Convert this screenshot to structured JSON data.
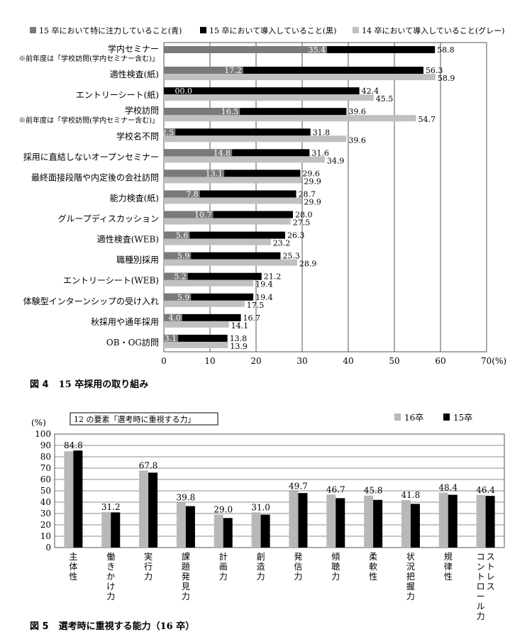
{
  "chart_data": [
    {
      "type": "bar",
      "orientation": "horizontal",
      "title": "",
      "caption_number": "図 4",
      "caption_text": "15 卒採用の取り組み",
      "xlim": [
        0,
        70
      ],
      "xticks": [
        "0",
        "10",
        "20",
        "30",
        "40",
        "50",
        "60",
        "70(%)"
      ],
      "grid": true,
      "legend": [
        "15 卒において特に注力していること(青)",
        "15 卒において導入していること(黒)",
        "14 卒において導入していること(グレー)"
      ],
      "categories": [
        {
          "label": "学内セミナー",
          "note": "※前年度は「学校訪問(学内セミナー含む)」"
        },
        {
          "label": "適性検査(紙)",
          "note": ""
        },
        {
          "label": "エントリーシート(紙)",
          "note": ""
        },
        {
          "label": "学校訪問",
          "note": "※前年度は「学校訪問(学内セミナー含む)」"
        },
        {
          "label": "学校名不問",
          "note": ""
        },
        {
          "label": "採用に直結しないオープンセミナー",
          "note": ""
        },
        {
          "label": "最終面接段階や内定後の会社訪問",
          "note": ""
        },
        {
          "label": "能力検査(紙)",
          "note": ""
        },
        {
          "label": "グループディスカッション",
          "note": ""
        },
        {
          "label": "適性検査(WEB)",
          "note": ""
        },
        {
          "label": "職種別採用",
          "note": ""
        },
        {
          "label": "エントリーシート(WEB)",
          "note": ""
        },
        {
          "label": "体験型インターンシップの受け入れ",
          "note": ""
        },
        {
          "label": "秋採用や通年採用",
          "note": ""
        },
        {
          "label": "OB・OG訪問",
          "note": ""
        }
      ],
      "series": [
        {
          "name": "15 卒において特に注力していること(青)",
          "color": "#7a7a7a",
          "values": [
            35.4,
            17.2,
            0.0,
            16.5,
            2.5,
            14.8,
            13.1,
            7.8,
            10.7,
            5.6,
            5.9,
            5.2,
            5.9,
            4.0,
            3.1
          ],
          "labels": [
            "35.4",
            "17.2",
            "00.0",
            "16.5",
            "2.5",
            "14.8",
            "13.1",
            "7.8",
            "10.7",
            "5.6",
            "5.9",
            "5.2",
            "5.9",
            "4.0",
            "3.1"
          ]
        },
        {
          "name": "15 卒において導入していること(黒)",
          "color": "#000000",
          "values": [
            58.8,
            56.3,
            42.4,
            39.6,
            31.8,
            31.6,
            29.6,
            28.7,
            28.0,
            26.3,
            25.3,
            21.2,
            19.4,
            16.7,
            13.8
          ],
          "labels": [
            "58.8",
            "56.3",
            "42.4",
            "39.6",
            "31.8",
            "31.6",
            "29.6",
            "28.7",
            "28.0",
            "26.3",
            "25.3",
            "21.2",
            "19.4",
            "16.7",
            "13.8"
          ]
        },
        {
          "name": "14 卒において導入していること(グレー)",
          "color": "#c0c0c0",
          "values": [
            null,
            58.9,
            45.5,
            54.7,
            39.6,
            34.9,
            29.9,
            29.9,
            27.5,
            23.2,
            28.9,
            19.4,
            17.5,
            14.1,
            13.9
          ],
          "labels": [
            "",
            "58.9",
            "45.5",
            "54.7",
            "39.6",
            "34.9",
            "29.9",
            "29.9",
            "27.5",
            "23.2",
            "28.9",
            "19.4",
            "17.5",
            "14.1",
            "13.9"
          ]
        }
      ]
    },
    {
      "type": "bar",
      "orientation": "vertical",
      "title": "",
      "caption_number": "図 5",
      "caption_text": "選考時に重視する能力（16 卒）",
      "box_label": "12 の要素「選考時に重視する力」",
      "ylabel": "(%)",
      "ylim": [
        0,
        100
      ],
      "yticks": [
        0,
        10,
        20,
        30,
        40,
        50,
        60,
        70,
        80,
        90,
        100
      ],
      "grid": true,
      "legend_placement": "top-right",
      "categories": [
        "主体性",
        "働きかけ力",
        "実行力",
        "課題発見力",
        "計画力",
        "創造力",
        "発信力",
        "傾聴力",
        "柔軟性",
        "状況把握力",
        "規律性",
        "ストレスコントロール力"
      ],
      "category_lines": [
        [
          "主体性"
        ],
        [
          "働きかけ力"
        ],
        [
          "実行力"
        ],
        [
          "課題発見力"
        ],
        [
          "計画力"
        ],
        [
          "創造力"
        ],
        [
          "発信力"
        ],
        [
          "傾聴力"
        ],
        [
          "柔軟性"
        ],
        [
          "状況把握力"
        ],
        [
          "規律性"
        ],
        [
          "コントロール力",
          "ストレス"
        ]
      ],
      "series": [
        {
          "name": "16卒",
          "color": "#b8b8b8",
          "values": [
            84.8,
            31.2,
            67.8,
            39.8,
            29.0,
            31.0,
            49.7,
            46.7,
            45.8,
            41.8,
            48.4,
            46.4
          ],
          "labels": [
            "84.8",
            "31.2",
            "67.8",
            "39.8",
            "29.0",
            "31.0",
            "49.7",
            "46.7",
            "45.8",
            "41.8",
            "48.4",
            "46.4"
          ]
        },
        {
          "name": "15卒",
          "color": "#000000",
          "values": [
            85.5,
            31.0,
            66.0,
            36.5,
            26.0,
            29.0,
            48.0,
            43.5,
            42.0,
            38.5,
            46.5,
            45.5
          ]
        }
      ]
    }
  ]
}
